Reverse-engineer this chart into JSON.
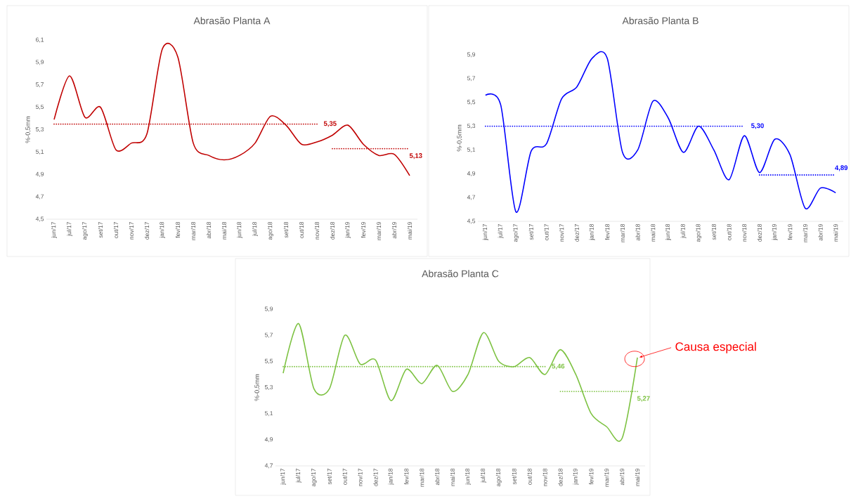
{
  "chart_data": [
    {
      "type": "line",
      "title": "Abrasão Planta A",
      "ylabel": "%-0,5mm",
      "categories": [
        "jun/17",
        "jul/17",
        "ago/17",
        "set/17",
        "out/17",
        "nov/17",
        "dez/17",
        "jan/18",
        "fev/18",
        "mar/18",
        "abr/18",
        "mai/18",
        "jun/18",
        "jul/18",
        "ago/18",
        "set/18",
        "out/18",
        "nov/18",
        "dez/18",
        "jan/19",
        "fev/19",
        "mar/19",
        "abr/19",
        "mai/19"
      ],
      "series": [
        {
          "color": "#c00000",
          "line_style": "solid",
          "values": [
            5.39,
            5.78,
            5.41,
            5.5,
            5.12,
            5.18,
            5.26,
            6.02,
            5.95,
            5.18,
            5.07,
            5.03,
            5.07,
            5.18,
            5.42,
            5.34,
            5.17,
            5.19,
            5.25,
            5.34,
            5.17,
            5.07,
            5.08,
            4.89
          ]
        },
        {
          "color": "#c00000",
          "line_style": "dotted",
          "values": [
            5.35,
            5.35,
            5.35,
            5.35,
            5.35,
            5.35,
            5.35,
            5.35,
            5.35,
            5.35,
            5.35,
            5.35,
            5.35,
            5.35,
            5.35,
            5.35,
            5.35,
            5.35,
            null,
            null,
            null,
            null,
            null,
            null
          ]
        },
        {
          "color": "#c00000",
          "line_style": "dotted",
          "values": [
            null,
            null,
            null,
            null,
            null,
            null,
            null,
            null,
            null,
            null,
            null,
            null,
            null,
            null,
            null,
            null,
            null,
            null,
            5.13,
            5.13,
            5.13,
            5.13,
            5.13,
            5.13
          ]
        }
      ],
      "annotations": [
        {
          "text": "5,35",
          "x": "nov/18",
          "y": 5.35
        },
        {
          "text": "5,13",
          "x": "mai/19",
          "y": 5.13
        }
      ],
      "ylim": [
        4.5,
        6.1
      ],
      "yticks": [
        {
          "value": 4.5,
          "label": "4,5"
        },
        {
          "value": 4.7,
          "label": "4,7"
        },
        {
          "value": 4.9,
          "label": "4,9"
        },
        {
          "value": 5.1,
          "label": "5,1"
        },
        {
          "value": 5.3,
          "label": "5,3"
        },
        {
          "value": 5.5,
          "label": "5,5"
        },
        {
          "value": 5.7,
          "label": "5,7"
        },
        {
          "value": 5.9,
          "label": "5,9"
        },
        {
          "value": 6.1,
          "label": "6,1"
        }
      ]
    },
    {
      "type": "line",
      "title": "Abrasão Planta B",
      "ylabel": "%-0,5mm",
      "categories": [
        "jun/17",
        "jul/17",
        "ago/17",
        "set/17",
        "out/17",
        "nov/17",
        "dez/17",
        "jan/18",
        "fev/18",
        "mar/18",
        "abr/18",
        "mai/18",
        "jun/18",
        "jul/18",
        "ago/18",
        "set/18",
        "out/18",
        "nov/18",
        "dez/18",
        "jan/19",
        "fev/19",
        "mar/19",
        "abr/19",
        "mai/19"
      ],
      "series": [
        {
          "color": "#0000ff",
          "line_style": "solid",
          "values": [
            5.56,
            5.48,
            4.58,
            5.09,
            5.15,
            5.53,
            5.63,
            5.87,
            5.87,
            5.08,
            5.1,
            5.51,
            5.37,
            5.08,
            5.3,
            5.1,
            4.85,
            5.22,
            4.91,
            5.19,
            5.06,
            4.61,
            4.78,
            4.74
          ]
        },
        {
          "color": "#0000ff",
          "line_style": "dotted",
          "values": [
            5.3,
            5.3,
            5.3,
            5.3,
            5.3,
            5.3,
            5.3,
            5.3,
            5.3,
            5.3,
            5.3,
            5.3,
            5.3,
            5.3,
            5.3,
            5.3,
            5.3,
            5.3,
            null,
            null,
            null,
            null,
            null,
            null
          ]
        },
        {
          "color": "#0000ff",
          "line_style": "dotted",
          "values": [
            null,
            null,
            null,
            null,
            null,
            null,
            null,
            null,
            null,
            null,
            null,
            null,
            null,
            null,
            null,
            null,
            null,
            null,
            4.89,
            4.89,
            4.89,
            4.89,
            4.89,
            4.89
          ]
        }
      ],
      "annotations": [
        {
          "text": "5,30",
          "x": "nov/18",
          "y": 5.3
        },
        {
          "text": "4,89",
          "x": "mai/19",
          "y": 4.89
        }
      ],
      "ylim": [
        4.5,
        5.9
      ],
      "yticks": [
        {
          "value": 4.5,
          "label": "4,5"
        },
        {
          "value": 4.7,
          "label": "4,7"
        },
        {
          "value": 4.9,
          "label": "4,9"
        },
        {
          "value": 5.1,
          "label": "5,1"
        },
        {
          "value": 5.3,
          "label": "5,3"
        },
        {
          "value": 5.5,
          "label": "5,5"
        },
        {
          "value": 5.7,
          "label": "5,7"
        },
        {
          "value": 5.9,
          "label": "5,9"
        }
      ]
    },
    {
      "type": "line",
      "title": "Abrasão Planta C",
      "ylabel": "%-0,5mm",
      "categories": [
        "jun/17",
        "jul/17",
        "ago/17",
        "set/17",
        "out/17",
        "nov/17",
        "dez/17",
        "jan/18",
        "fev/18",
        "mar/18",
        "abr/18",
        "mai/18",
        "jun/18",
        "jul/18",
        "ago/18",
        "set/18",
        "out/18",
        "nov/18",
        "dez/18",
        "jan/19",
        "fev/19",
        "mar/19",
        "abr/19",
        "mai/19"
      ],
      "series": [
        {
          "color": "#7dc242",
          "line_style": "solid",
          "values": [
            5.41,
            5.79,
            5.29,
            5.29,
            5.7,
            5.48,
            5.51,
            5.2,
            5.44,
            5.33,
            5.47,
            5.27,
            5.4,
            5.72,
            5.5,
            5.46,
            5.53,
            5.4,
            5.59,
            5.4,
            5.1,
            5.0,
            4.91,
            5.53
          ]
        },
        {
          "color": "#7dc242",
          "line_style": "dotted",
          "values": [
            5.46,
            5.46,
            5.46,
            5.46,
            5.46,
            5.46,
            5.46,
            5.46,
            5.46,
            5.46,
            5.46,
            5.46,
            5.46,
            5.46,
            5.46,
            5.46,
            5.46,
            5.46,
            null,
            null,
            null,
            null,
            null,
            null
          ]
        },
        {
          "color": "#7dc242",
          "line_style": "dotted",
          "values": [
            null,
            null,
            null,
            null,
            null,
            null,
            null,
            null,
            null,
            null,
            null,
            null,
            null,
            null,
            null,
            null,
            null,
            null,
            5.27,
            5.27,
            5.27,
            5.27,
            5.27,
            5.27
          ]
        }
      ],
      "annotations": [
        {
          "text": "5,46",
          "x": "nov/18",
          "y": 5.46
        },
        {
          "text": "5,27",
          "x": "mai/19",
          "y": 5.27
        },
        {
          "text": "Causa especial",
          "x": "mai/19",
          "y": 5.53
        }
      ],
      "ylim": [
        4.7,
        5.9
      ],
      "yticks": [
        {
          "value": 4.7,
          "label": "4,7"
        },
        {
          "value": 4.9,
          "label": "4,9"
        },
        {
          "value": 5.1,
          "label": "5,1"
        },
        {
          "value": 5.3,
          "label": "5,3"
        },
        {
          "value": 5.5,
          "label": "5,5"
        },
        {
          "value": 5.7,
          "label": "5,7"
        },
        {
          "value": 5.9,
          "label": "5,9"
        }
      ]
    }
  ]
}
